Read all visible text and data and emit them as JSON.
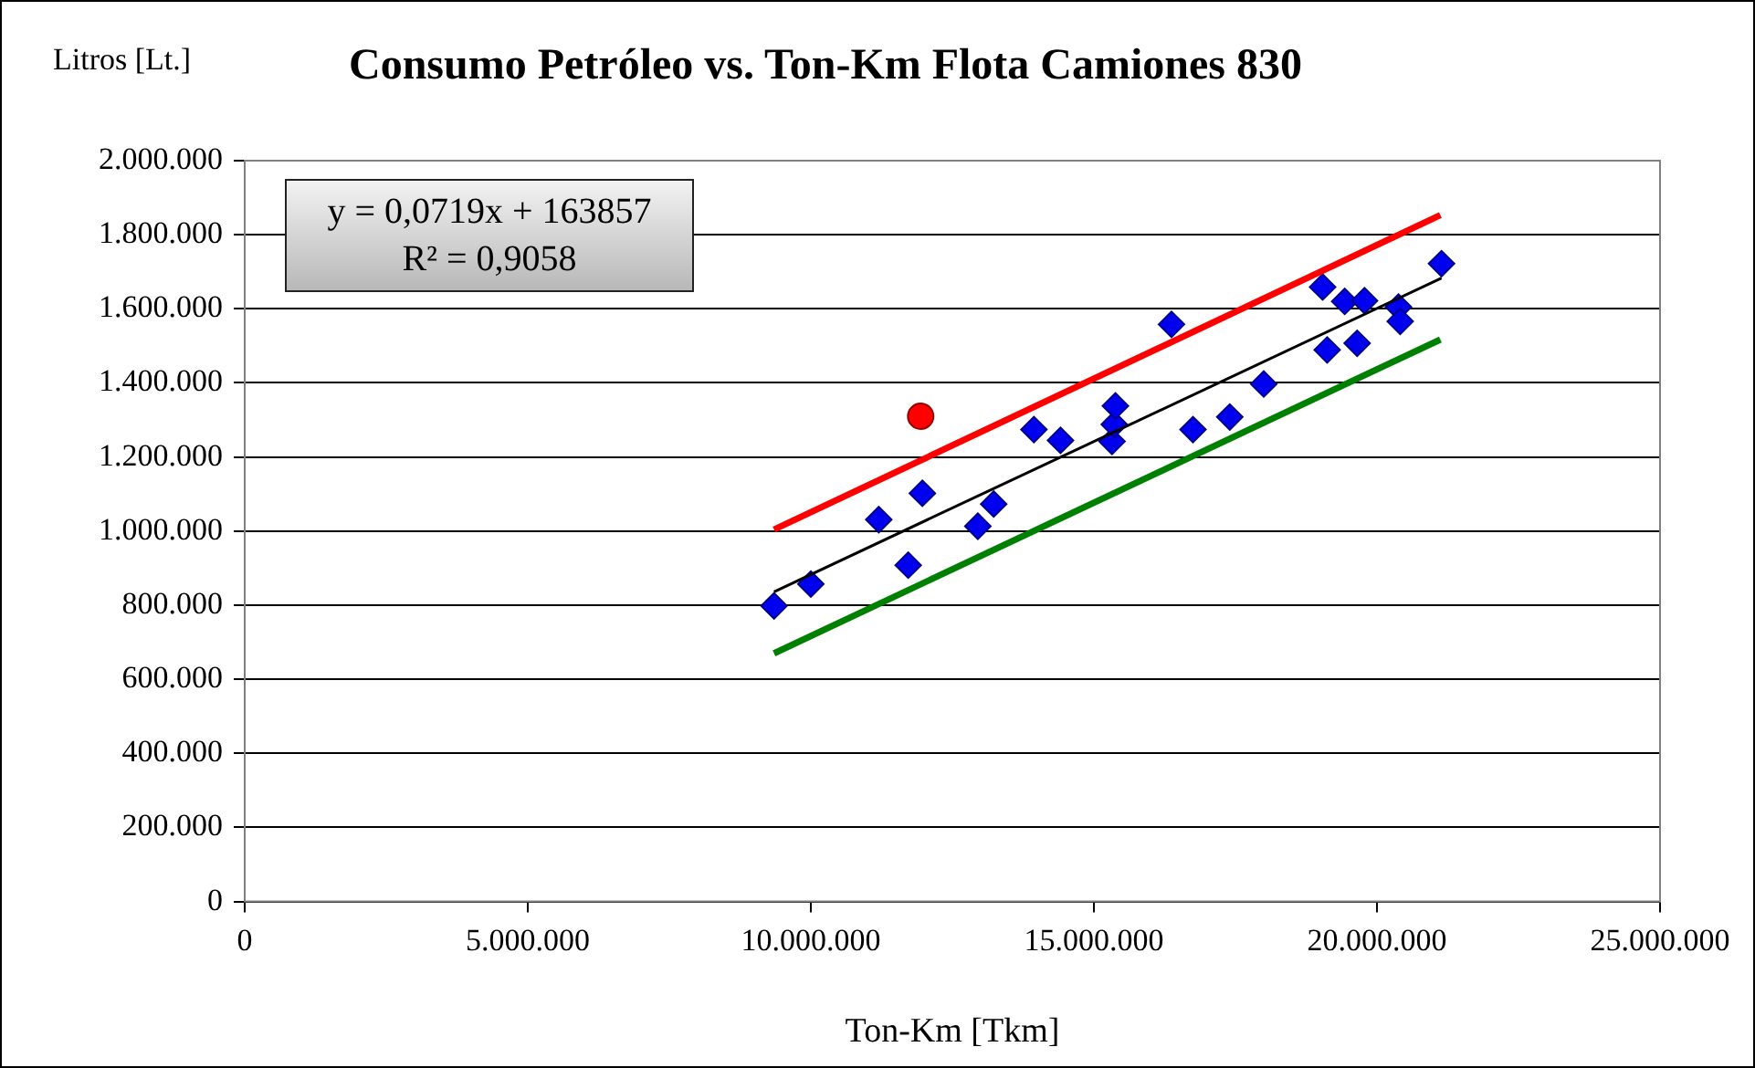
{
  "chart_data": {
    "type": "scatter",
    "title": "Consumo Petróleo vs. Ton-Km Flota Camiones 830",
    "xlabel": "Ton-Km [Tkm]",
    "ylabel": "Litros [Lt.]",
    "annotations": [
      "y = 0,0719x + 163857",
      "R² = 0,9058"
    ],
    "xlim": [
      0,
      25000000
    ],
    "xticks": [
      {
        "value": 0,
        "label": "0"
      },
      {
        "value": 5000000,
        "label": "5.000.000"
      },
      {
        "value": 10000000,
        "label": "10.000.000"
      },
      {
        "value": 15000000,
        "label": "15.000.000"
      },
      {
        "value": 20000000,
        "label": "20.000.000"
      },
      {
        "value": 25000000,
        "label": "25.000.000"
      }
    ],
    "ylim": [
      0,
      2000000
    ],
    "yticks": [
      {
        "value": 0,
        "label": "0"
      },
      {
        "value": 200000,
        "label": "200.000"
      },
      {
        "value": 400000,
        "label": "400.000"
      },
      {
        "value": 600000,
        "label": "600.000"
      },
      {
        "value": 800000,
        "label": "800.000"
      },
      {
        "value": 1000000,
        "label": "1.000.000"
      },
      {
        "value": 1200000,
        "label": "1.200.000"
      },
      {
        "value": 1400000,
        "label": "1.400.000"
      },
      {
        "value": 1600000,
        "label": "1.600.000"
      },
      {
        "value": 1800000,
        "label": "1.800.000"
      },
      {
        "value": 2000000,
        "label": "2.000.000"
      }
    ],
    "grid": "y",
    "legend": false,
    "series": [
      {
        "type": "line",
        "marker": "none",
        "line_style": "solid",
        "color": "#ff0000",
        "x": [
          9350000,
          21120000
        ],
        "values": [
          1004000,
          1853000
        ]
      },
      {
        "type": "line",
        "marker": "none",
        "line_style": "solid",
        "color": "#008000",
        "x": [
          9350000,
          21120000
        ],
        "values": [
          670000,
          1517000
        ]
      },
      {
        "type": "line",
        "marker": "none",
        "line_style": "solid",
        "color": "#000000",
        "x": [
          9350000,
          21140000
        ],
        "values": [
          836000,
          1683000
        ]
      },
      {
        "type": "scatter",
        "marker": "diamond",
        "color": "#0000ee",
        "x": [
          9350000,
          10000000,
          11200000,
          11720000,
          11970000,
          12950000,
          13230000,
          13940000,
          14410000,
          15320000,
          15360000,
          15380000,
          16370000,
          16750000,
          17400000,
          18000000,
          19040000,
          19120000,
          19430000,
          19650000,
          19780000,
          20380000,
          20410000,
          21140000
        ],
        "values": [
          798000,
          857000,
          1031000,
          908000,
          1102000,
          1013000,
          1073000,
          1274000,
          1245000,
          1242000,
          1288000,
          1338000,
          1558000,
          1274000,
          1308000,
          1397000,
          1659000,
          1489000,
          1620000,
          1507000,
          1622000,
          1605000,
          1566000,
          1722000
        ]
      },
      {
        "type": "scatter",
        "marker": "circle",
        "color": "#ff0000",
        "x": [
          11940000
        ],
        "values": [
          1310000
        ]
      }
    ]
  }
}
